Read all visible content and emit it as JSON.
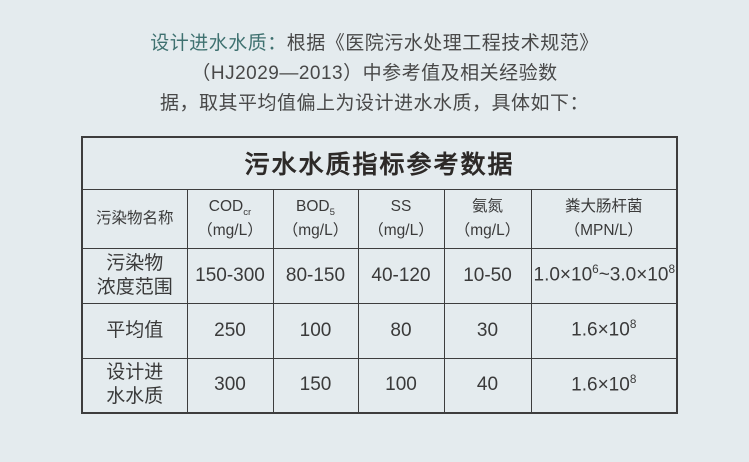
{
  "page": {
    "background_color": "#e4ebee",
    "accent_color": "#3f7170"
  },
  "intro": {
    "lead": "设计进水水质：",
    "line1_rest": "根据《医院污水处理工程技术规范》",
    "line2": "（HJ2029—2013）中参考值及相关经验数",
    "line3": "据，取其平均值偏上为设计进水水质，具体如下："
  },
  "table": {
    "title": "污水水质指标参考数据",
    "header": {
      "name_col": "污染物名称",
      "cols": [
        {
          "main": "COD",
          "sub": "cr",
          "unit": "（mg/L）"
        },
        {
          "main": "BOD",
          "sub": "5",
          "unit": "（mg/L）"
        },
        {
          "main": "SS",
          "sub": "",
          "unit": "（mg/L）"
        },
        {
          "main": "氨氮",
          "sub": "",
          "unit": "（mg/L）"
        },
        {
          "main": "粪大肠杆菌",
          "sub": "",
          "unit": "（MPN/L）"
        }
      ]
    },
    "rows": [
      {
        "label": "污染物\n浓度范围",
        "values": [
          "150-300",
          "80-150",
          "40-120",
          "10-50",
          "1.0×10^6~3.0×10^8"
        ]
      },
      {
        "label": "平均值",
        "values": [
          "250",
          "100",
          "80",
          "30",
          "1.6×10^8"
        ]
      },
      {
        "label": "设计进\n水水质",
        "values": [
          "300",
          "150",
          "100",
          "40",
          "1.6×10^8"
        ]
      }
    ]
  }
}
